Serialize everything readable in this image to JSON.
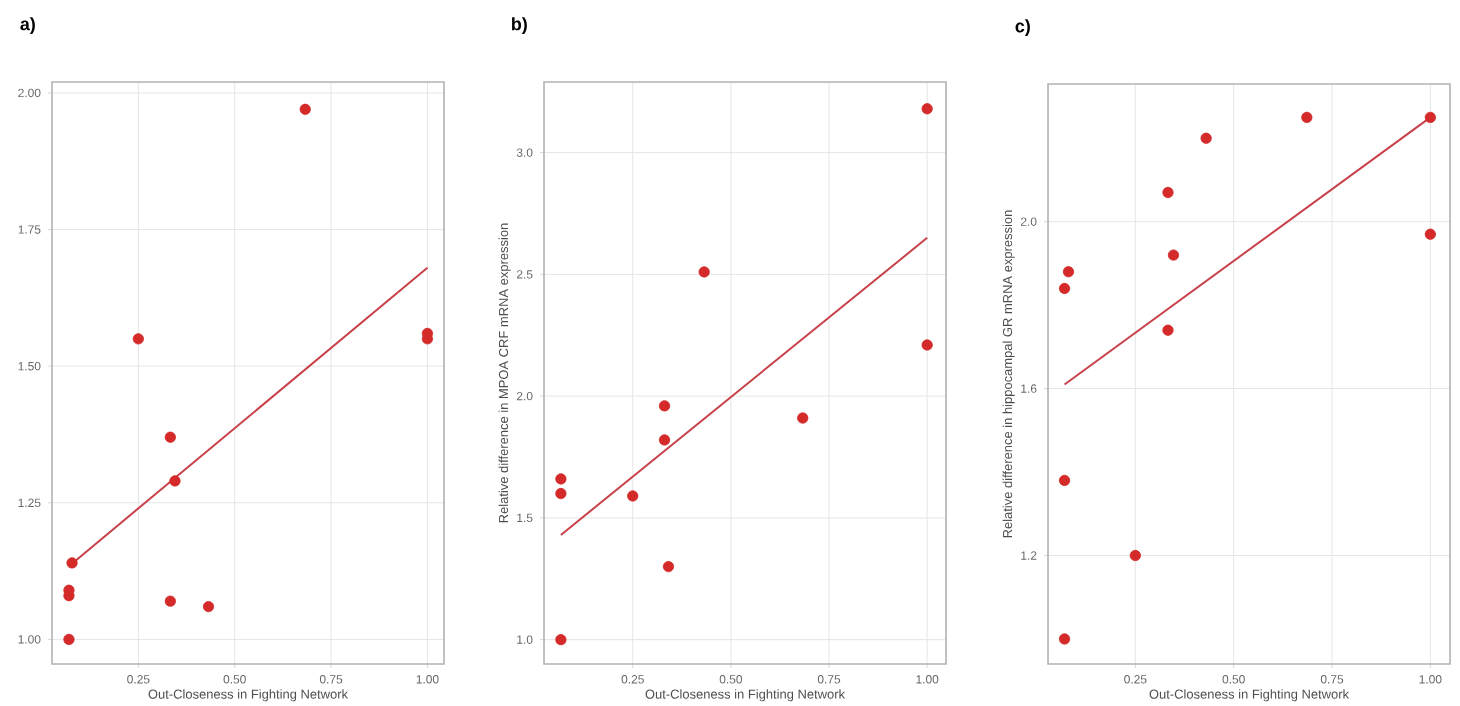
{
  "chart_data": [
    {
      "type": "scatter",
      "title": "a)",
      "xlabel": "Out-Closeness in Fighting Network",
      "xlim": [
        0.026,
        1.043
      ],
      "ylim": [
        0.955,
        2.02
      ],
      "xticks": [
        {
          "value": 0.25,
          "label": "0.25"
        },
        {
          "value": 0.5,
          "label": "0.50"
        },
        {
          "value": 0.75,
          "label": "0.75"
        },
        {
          "value": 1.0,
          "label": "1.00"
        }
      ],
      "yticks": [
        {
          "value": 1.0,
          "label": "1.00"
        },
        {
          "value": 1.25,
          "label": "1.25"
        },
        {
          "value": 1.5,
          "label": "1.50"
        },
        {
          "value": 1.75,
          "label": "1.75"
        },
        {
          "value": 2.0,
          "label": "2.00"
        }
      ],
      "grid": true,
      "series": [
        {
          "color": "#d42a2a",
          "x": [
            0.683,
            0.25,
            0.333,
            0.345,
            0.078,
            0.07,
            0.07,
            0.07,
            0.333,
            0.432,
            1.0,
            1.0
          ],
          "values": [
            1.97,
            1.55,
            1.37,
            1.29,
            1.14,
            1.09,
            1.08,
            1.0,
            1.07,
            1.06,
            1.56,
            1.55
          ]
        },
        {
          "type": "line",
          "color": "#c8414a",
          "x": [
            0.08,
            1.0
          ],
          "values": [
            1.14,
            1.68
          ]
        }
      ]
    },
    {
      "type": "scatter",
      "title": "b)",
      "xlabel": "Out-Closeness in Fighting Network",
      "ylabel": "Relative difference in MPOA CRF mRNA expression",
      "xlim": [
        0.024,
        1.048
      ],
      "ylim": [
        0.9,
        3.29
      ],
      "xticks": [
        {
          "value": 0.25,
          "label": "0.25"
        },
        {
          "value": 0.5,
          "label": "0.50"
        },
        {
          "value": 0.75,
          "label": "0.75"
        },
        {
          "value": 1.0,
          "label": "1.00"
        }
      ],
      "yticks": [
        {
          "value": 1.0,
          "label": "1.0"
        },
        {
          "value": 1.5,
          "label": "1.5"
        },
        {
          "value": 2.0,
          "label": "2.0"
        },
        {
          "value": 2.5,
          "label": "2.5"
        },
        {
          "value": 3.0,
          "label": "3.0"
        }
      ],
      "grid": true,
      "series": [
        {
          "color": "#d42a2a",
          "x": [
            1.0,
            0.432,
            0.331,
            0.331,
            0.683,
            0.067,
            0.067,
            0.25,
            0.341,
            0.067,
            1.0
          ],
          "values": [
            3.18,
            2.51,
            1.96,
            1.82,
            1.91,
            1.66,
            1.6,
            1.59,
            1.3,
            1.0,
            2.21
          ]
        },
        {
          "type": "line",
          "color": "#c8414a",
          "x": [
            0.067,
            1.0
          ],
          "values": [
            1.43,
            2.65
          ]
        }
      ]
    },
    {
      "type": "scatter",
      "title": "c)",
      "xlabel": "Out-Closeness in Fighting Network",
      "ylabel": "Relative difference in hippocampal GR mRNA expression",
      "xlim": [
        0.028,
        1.05
      ],
      "ylim": [
        0.94,
        2.33
      ],
      "xticks": [
        {
          "value": 0.25,
          "label": "0.25"
        },
        {
          "value": 0.5,
          "label": "0.50"
        },
        {
          "value": 0.75,
          "label": "0.75"
        },
        {
          "value": 1.0,
          "label": "1.00"
        }
      ],
      "yticks": [
        1.2,
        1.6,
        {
          "value": 2.0,
          "label": "2.0"
        }
      ],
      "grid": true,
      "series": [
        {
          "color": "#d42a2a",
          "x": [
            0.686,
            1.0,
            0.43,
            0.333,
            0.347,
            0.08,
            0.07,
            0.333,
            1.0,
            0.07,
            0.25,
            0.07
          ],
          "values": [
            2.25,
            2.25,
            2.2,
            2.07,
            1.92,
            1.88,
            1.84,
            1.74,
            1.97,
            1.38,
            1.2,
            1.0
          ]
        },
        {
          "type": "line",
          "color": "#c8414a",
          "x": [
            0.07,
            1.0
          ],
          "values": [
            1.61,
            2.25
          ]
        }
      ]
    }
  ]
}
